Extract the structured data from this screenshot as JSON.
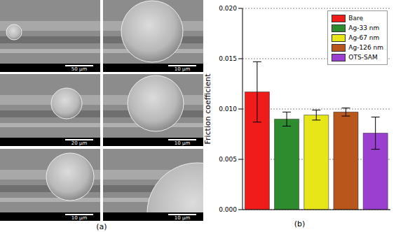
{
  "panel_labels": [
    "(a)",
    "(b)"
  ],
  "images": {
    "scale_bars": [
      [
        "50 μm",
        "10 μm"
      ],
      [
        "20 μm",
        "10 μm"
      ],
      [
        "10 μm",
        "10 μm"
      ]
    ]
  },
  "chart_data": {
    "type": "bar",
    "categories": [
      "Bare",
      "Ag-33 nm",
      "Ag-67 nm",
      "Ag-126 nm",
      "OTS-SAM"
    ],
    "values": [
      0.0117,
      0.009,
      0.0094,
      0.0097,
      0.0076
    ],
    "errors": [
      0.003,
      0.0007,
      0.0005,
      0.0004,
      0.0016
    ],
    "colors": [
      "#f01c1c",
      "#2e8b2e",
      "#e6e619",
      "#b8561c",
      "#9b3fd1"
    ],
    "y_label": "Friction coefficient",
    "ylim": [
      0,
      0.02
    ],
    "yticks": [
      {
        "value": 0,
        "label": "0.000"
      },
      {
        "value": 0.005,
        "label": "0.005"
      },
      {
        "value": 0.01,
        "label": "0.010"
      },
      {
        "value": 0.015,
        "label": "0.015"
      },
      {
        "value": 0.02,
        "label": "0.020"
      }
    ],
    "grid": true,
    "legend": "upper right",
    "tick_labels": "y"
  }
}
